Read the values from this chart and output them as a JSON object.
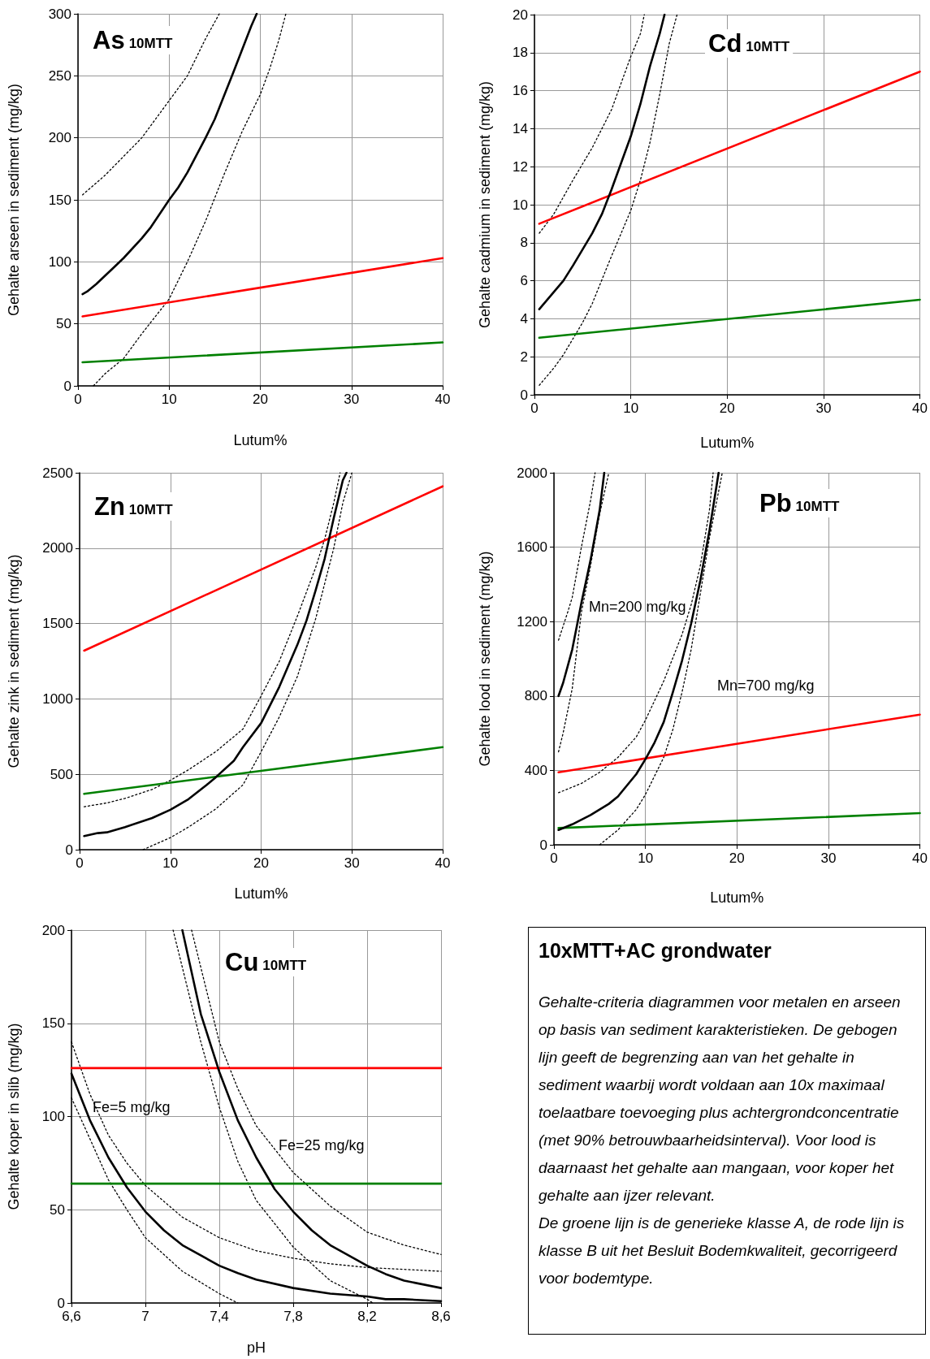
{
  "chart_data": [
    {
      "type": "line",
      "title": "As",
      "subtitle": "10MTT",
      "xlabel": "Lutum%",
      "ylabel": "Gehalte arseen in sediment (mg/kg)",
      "xlim": [
        0,
        40
      ],
      "ylim": [
        0,
        300
      ],
      "xticks": [
        0,
        10,
        20,
        30,
        40
      ],
      "yticks": [
        0,
        50,
        100,
        150,
        200,
        250,
        300
      ],
      "grid": true,
      "marker": "none",
      "series": [
        {
          "color": "#ff0000",
          "x": [
            0.5,
            40
          ],
          "values": [
            56,
            103
          ]
        },
        {
          "color": "#008000",
          "x": [
            0.5,
            40
          ],
          "values": [
            19,
            35
          ]
        },
        {
          "color": "#000000",
          "line_style": "dotted",
          "x": [
            0.5,
            3,
            5,
            7,
            10,
            12,
            14,
            15.5
          ],
          "values": [
            154,
            170,
            185,
            200,
            230,
            250,
            280,
            300
          ]
        },
        {
          "color": "#000000",
          "line_style": "dotted",
          "x": [
            1.7,
            3,
            5,
            7,
            10,
            12,
            14,
            16,
            18,
            20,
            21,
            22,
            22.8
          ],
          "values": [
            0,
            10,
            22,
            42,
            70,
            100,
            133,
            170,
            205,
            235,
            255,
            278,
            300
          ]
        },
        {
          "color": "#000000",
          "x": [
            0.5,
            1,
            2,
            4,
            5,
            7,
            8,
            10,
            11,
            12,
            14,
            15,
            17,
            19,
            19.6
          ],
          "values": [
            74,
            76,
            82,
            96,
            103,
            119,
            128,
            150,
            160,
            172,
            200,
            215,
            252,
            290,
            300
          ]
        }
      ]
    },
    {
      "type": "line",
      "title": "Cd",
      "subtitle": "10MTT",
      "xlabel": "Lutum%",
      "ylabel": "Gehalte cadmium in sediment (mg/kg)",
      "xlim": [
        0,
        40
      ],
      "ylim": [
        0,
        20
      ],
      "xticks": [
        0,
        10,
        20,
        30,
        40
      ],
      "yticks": [
        0,
        2,
        4,
        6,
        8,
        10,
        12,
        14,
        16,
        18,
        20
      ],
      "grid": true,
      "marker": "none",
      "series": [
        {
          "color": "#ff0000",
          "x": [
            0.5,
            40
          ],
          "values": [
            9,
            17
          ]
        },
        {
          "color": "#008000",
          "x": [
            0.5,
            40
          ],
          "values": [
            3,
            5
          ]
        },
        {
          "color": "#000000",
          "line_style": "dotted",
          "x": [
            0.5,
            2,
            4,
            6,
            8,
            10,
            11,
            11.4
          ],
          "values": [
            8.5,
            9.5,
            11.3,
            13,
            15,
            17.8,
            19,
            20
          ]
        },
        {
          "color": "#000000",
          "line_style": "dotted",
          "x": [
            0.5,
            2,
            3,
            5,
            6,
            8,
            10,
            11,
            12,
            13,
            14,
            14.8
          ],
          "values": [
            0.5,
            1.4,
            2.1,
            3.8,
            4.8,
            7.3,
            9.7,
            11.3,
            13.3,
            15.8,
            18.5,
            20
          ]
        },
        {
          "color": "#000000",
          "x": [
            0.5,
            2,
            3,
            4,
            6,
            7,
            8,
            9,
            10,
            11,
            12,
            13,
            13.5
          ],
          "values": [
            4.5,
            5.4,
            6,
            6.8,
            8.5,
            9.5,
            10.8,
            12.2,
            13.6,
            15.3,
            17.3,
            19,
            20
          ]
        }
      ]
    },
    {
      "type": "line",
      "title": "Zn",
      "subtitle": "10MTT",
      "xlabel": "Lutum%",
      "ylabel": "Gehalte zink in sediment (mg/kg)",
      "xlim": [
        0,
        40
      ],
      "ylim": [
        0,
        2500
      ],
      "xticks": [
        0,
        10,
        20,
        30,
        40
      ],
      "yticks": [
        0,
        500,
        1000,
        1500,
        2000,
        2500
      ],
      "grid": true,
      "marker": "none",
      "series": [
        {
          "color": "#ff0000",
          "x": [
            0.5,
            40
          ],
          "values": [
            1320,
            2410
          ]
        },
        {
          "color": "#008000",
          "x": [
            0.5,
            40
          ],
          "values": [
            370,
            680
          ]
        },
        {
          "color": "#000000",
          "line_style": "dotted",
          "x": [
            0.5,
            3,
            5,
            8,
            10,
            12,
            15,
            18,
            20,
            22,
            24,
            26,
            27,
            28,
            28.7
          ],
          "values": [
            285,
            310,
            340,
            400,
            460,
            530,
            650,
            800,
            1020,
            1250,
            1550,
            1870,
            2060,
            2300,
            2500
          ]
        },
        {
          "color": "#000000",
          "line_style": "dotted",
          "x": [
            7,
            10,
            12,
            15,
            18,
            20,
            22,
            24,
            26,
            28,
            29,
            30
          ],
          "values": [
            0,
            80,
            150,
            270,
            430,
            650,
            880,
            1150,
            1530,
            2000,
            2300,
            2500
          ]
        },
        {
          "color": "#000000",
          "x": [
            0.5,
            2,
            3,
            5,
            8,
            10,
            12,
            14,
            15,
            17,
            18,
            20,
            22,
            24,
            25,
            26,
            27,
            28,
            29,
            29.4
          ],
          "values": [
            90,
            110,
            115,
            150,
            210,
            265,
            335,
            430,
            480,
            590,
            680,
            840,
            1080,
            1360,
            1520,
            1720,
            1930,
            2200,
            2450,
            2500
          ]
        }
      ]
    },
    {
      "type": "line",
      "title": "Pb",
      "subtitle": "10MTT",
      "xlabel": "Lutum%",
      "ylabel": "Gehalte lood in sediment (mg/kg)",
      "xlim": [
        0,
        40
      ],
      "ylim": [
        0,
        2000
      ],
      "xticks": [
        0,
        10,
        20,
        30,
        40
      ],
      "yticks": [
        0,
        400,
        800,
        1200,
        1600,
        2000
      ],
      "grid": true,
      "marker": "none",
      "annotations": [
        "Mn=200 mg/kg",
        "Mn=700 mg/kg"
      ],
      "series": [
        {
          "color": "#ff0000",
          "x": [
            0.5,
            40
          ],
          "values": [
            390,
            700
          ]
        },
        {
          "color": "#008000",
          "x": [
            0.5,
            40
          ],
          "values": [
            90,
            170
          ]
        },
        {
          "color": "#000000",
          "line_style": "dotted",
          "x": [
            0.5,
            1.5,
            2,
            3,
            4,
            4.5
          ],
          "values": [
            1100,
            1250,
            1330,
            1600,
            1850,
            2000
          ]
        },
        {
          "color": "#000000",
          "line_style": "dotted",
          "x": [
            0.5,
            1,
            2,
            3,
            4,
            5,
            6
          ],
          "values": [
            500,
            600,
            840,
            1250,
            1500,
            1780,
            2000
          ]
        },
        {
          "color": "#000000",
          "x": [
            0.5,
            1,
            2,
            3,
            4,
            5,
            5.5
          ],
          "values": [
            800,
            870,
            1050,
            1300,
            1530,
            1800,
            2000
          ]
        },
        {
          "color": "#000000",
          "line_style": "dotted",
          "x": [
            0.5,
            3,
            5,
            7,
            9,
            10,
            12,
            14,
            15,
            16,
            17,
            17.4
          ],
          "values": [
            280,
            330,
            390,
            470,
            580,
            670,
            880,
            1130,
            1290,
            1500,
            1800,
            2000
          ]
        },
        {
          "color": "#000000",
          "line_style": "dotted",
          "x": [
            5,
            7,
            9,
            10,
            12,
            13,
            14,
            15,
            16,
            17,
            18.4
          ],
          "values": [
            0,
            80,
            190,
            270,
            470,
            620,
            820,
            1050,
            1350,
            1650,
            2000
          ]
        },
        {
          "color": "#000000",
          "x": [
            0.5,
            2,
            4,
            6,
            7,
            9,
            10,
            11,
            12,
            13,
            14,
            15,
            16,
            17,
            18
          ],
          "values": [
            80,
            110,
            160,
            220,
            260,
            380,
            460,
            550,
            660,
            820,
            990,
            1190,
            1420,
            1690,
            2000
          ]
        }
      ]
    },
    {
      "type": "line",
      "title": "Cu",
      "subtitle": "10MTT",
      "xlabel": "pH",
      "ylabel": "Gehalte koper in slib (mg/kg)",
      "xlim": [
        6.6,
        8.6
      ],
      "ylim": [
        0,
        200
      ],
      "xticks": [
        {
          "value": 6.6,
          "label": "6,6"
        },
        7,
        {
          "value": 7.4,
          "label": "7,4"
        },
        {
          "value": 7.8,
          "label": "7,8"
        },
        {
          "value": 8.2,
          "label": "8,2"
        },
        {
          "value": 8.6,
          "label": "8,6"
        }
      ],
      "yticks": [
        0,
        50,
        100,
        150,
        200
      ],
      "grid": true,
      "marker": "none",
      "annotations": [
        "Fe=5 mg/kg",
        "Fe=25 mg/kg"
      ],
      "series": [
        {
          "color": "#ff0000",
          "x": [
            6.6,
            8.6
          ],
          "values": [
            126,
            126
          ]
        },
        {
          "color": "#008000",
          "x": [
            6.6,
            8.6
          ],
          "values": [
            64,
            64
          ]
        },
        {
          "color": "#000000",
          "line_style": "dotted",
          "x": [
            6.6,
            6.7,
            6.8,
            6.9,
            7.0,
            7.2,
            7.4,
            7.6,
            7.8,
            8.0,
            8.2,
            8.4,
            8.6
          ],
          "values": [
            140,
            112,
            90,
            75,
            63,
            46,
            35,
            28,
            24,
            21,
            19,
            18,
            17
          ]
        },
        {
          "color": "#000000",
          "line_style": "dotted",
          "x": [
            6.6,
            6.7,
            6.8,
            6.9,
            7.0,
            7.2,
            7.4,
            7.5
          ],
          "values": [
            110,
            88,
            66,
            50,
            35,
            17,
            5,
            0
          ]
        },
        {
          "color": "#000000",
          "x": [
            6.6,
            6.7,
            6.8,
            6.9,
            7.0,
            7.1,
            7.2,
            7.4,
            7.5,
            7.6,
            7.8,
            8.0,
            8.2,
            8.3,
            8.4,
            8.6
          ],
          "values": [
            123,
            98,
            78,
            62,
            49,
            39,
            31,
            20,
            16,
            12.5,
            8,
            5,
            3.5,
            2,
            2,
            1
          ]
        },
        {
          "color": "#000000",
          "line_style": "dotted",
          "x": [
            7.25,
            7.4,
            7.5,
            7.6,
            7.8,
            8.0,
            8.2,
            8.4,
            8.6
          ],
          "values": [
            200,
            140,
            115,
            95,
            70,
            52,
            38,
            31,
            26
          ]
        },
        {
          "color": "#000000",
          "line_style": "dotted",
          "x": [
            7.15,
            7.2,
            7.3,
            7.4,
            7.5,
            7.6,
            7.8,
            8.0,
            8.2,
            8.23
          ],
          "values": [
            200,
            180,
            140,
            105,
            76,
            55,
            30,
            12,
            2,
            0
          ]
        },
        {
          "color": "#000000",
          "x": [
            7.2,
            7.3,
            7.4,
            7.5,
            7.6,
            7.7,
            7.8,
            7.9,
            8.0,
            8.2,
            8.3,
            8.4,
            8.6
          ],
          "values": [
            200,
            155,
            124,
            98,
            78,
            61,
            49,
            39,
            31,
            20,
            15.5,
            12,
            8
          ]
        }
      ]
    },
    {
      "type": "other",
      "title": "10xMTT+AC grondwater",
      "annotations": [
        "Gehalte-criteria diagrammen voor metalen en arseen op basis van sediment karakteristieken. De gebogen lijn geeft de begrenzing aan van het gehalte in sediment waarbij wordt voldaan aan 10x maximaal toelaatbare toevoeging plus achtergrondconcentratie (met 90% betrouwbaarheidsinterval). Voor lood is daarnaast het gehalte aan mangaan, voor koper het gehalte aan ijzer relevant.",
        "De groene lijn is de generieke klasse A, de rode lijn is klasse B uit het Besluit Bodemkwaliteit, gecorrigeerd voor bodemtype."
      ]
    }
  ]
}
